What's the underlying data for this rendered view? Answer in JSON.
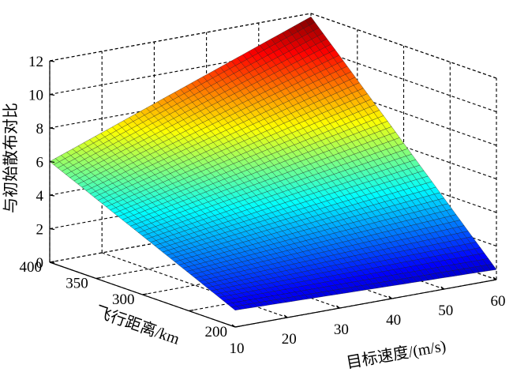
{
  "chart_data": {
    "type": "surface3d",
    "title": "",
    "xlabel": "目标速度/(m/s)",
    "ylabel": "飞行距离/km",
    "zlabel": "与初始散布对比",
    "x_ticks": [
      10,
      20,
      30,
      40,
      50,
      60
    ],
    "y_ticks": [
      200,
      250,
      300,
      350,
      400
    ],
    "y_tick_labels": [
      "200",
      "",
      "300",
      "350",
      "400"
    ],
    "z_ticks": [
      0,
      2,
      4,
      6,
      8,
      10,
      12
    ],
    "xlim": [
      10,
      60
    ],
    "ylim": [
      200,
      400
    ],
    "zlim": [
      0,
      12
    ],
    "grid": true,
    "colormap": "jet",
    "surface_corners": [
      {
        "x": 10,
        "y": 200,
        "z": 1.0
      },
      {
        "x": 60,
        "y": 200,
        "z": 0.6
      },
      {
        "x": 10,
        "y": 400,
        "z": 6.0
      },
      {
        "x": 60,
        "y": 400,
        "z": 11.8
      }
    ]
  }
}
